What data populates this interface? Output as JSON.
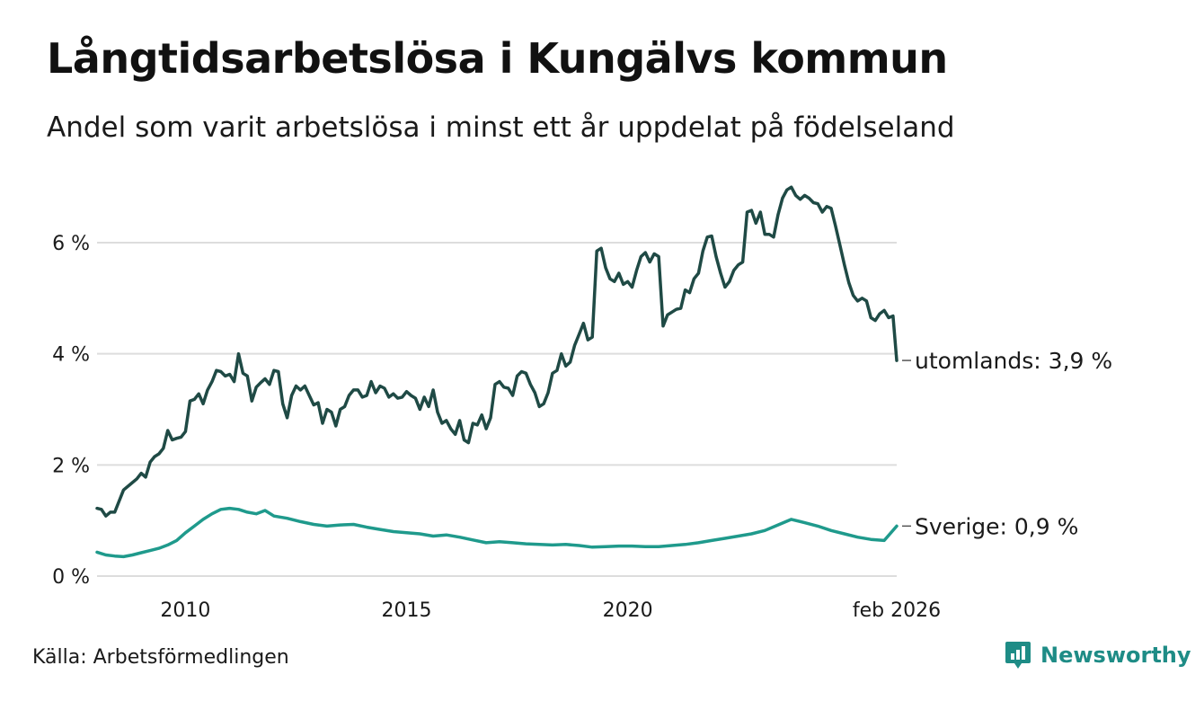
{
  "header": {
    "title": "Långtidsarbetslösa i Kungälvs kommun",
    "subtitle": "Andel som varit arbetslösa i minst ett år uppdelat på födelseland"
  },
  "footer": {
    "source": "Källa: Arbetsförmedlingen",
    "brand": "Newsworthy"
  },
  "colors": {
    "foreign": "#1f4a45",
    "sweden": "#1f9a8c",
    "grid": "#dddddd",
    "brand": "#1e8c86"
  },
  "chart_data": {
    "type": "line",
    "title": "Långtidsarbetslösa i Kungälvs kommun",
    "subtitle": "Andel som varit arbetslösa i minst ett år uppdelat på födelseland",
    "xlabel": "",
    "ylabel": "",
    "ylim": [
      0,
      7
    ],
    "xlim": [
      2008.0,
      2026.083
    ],
    "grid": true,
    "y_ticks": [
      {
        "value": 0,
        "label": "0 %"
      },
      {
        "value": 2,
        "label": "2 %"
      },
      {
        "value": 4,
        "label": "4 %"
      },
      {
        "value": 6,
        "label": "6 %"
      }
    ],
    "x_ticks": [
      {
        "value": 2010,
        "label": "2010"
      },
      {
        "value": 2015,
        "label": "2015"
      },
      {
        "value": 2020,
        "label": "2020"
      },
      {
        "value": 2026.083,
        "label": "feb 2026"
      }
    ],
    "series": [
      {
        "name": "utomlands",
        "end_label": "utomlands: 3,9 %",
        "color": "#1f4a45",
        "points": [
          [
            2008.0,
            1.22
          ],
          [
            2008.1,
            1.2
          ],
          [
            2008.2,
            1.08
          ],
          [
            2008.3,
            1.15
          ],
          [
            2008.4,
            1.15
          ],
          [
            2008.5,
            1.35
          ],
          [
            2008.6,
            1.55
          ],
          [
            2008.75,
            1.65
          ],
          [
            2008.9,
            1.75
          ],
          [
            2009.0,
            1.85
          ],
          [
            2009.1,
            1.78
          ],
          [
            2009.2,
            2.05
          ],
          [
            2009.3,
            2.15
          ],
          [
            2009.4,
            2.2
          ],
          [
            2009.5,
            2.3
          ],
          [
            2009.6,
            2.62
          ],
          [
            2009.7,
            2.45
          ],
          [
            2009.8,
            2.48
          ],
          [
            2009.9,
            2.5
          ],
          [
            2010.0,
            2.6
          ],
          [
            2010.1,
            3.15
          ],
          [
            2010.2,
            3.18
          ],
          [
            2010.3,
            3.28
          ],
          [
            2010.4,
            3.1
          ],
          [
            2010.5,
            3.35
          ],
          [
            2010.6,
            3.5
          ],
          [
            2010.7,
            3.7
          ],
          [
            2010.8,
            3.68
          ],
          [
            2010.9,
            3.6
          ],
          [
            2011.0,
            3.63
          ],
          [
            2011.1,
            3.5
          ],
          [
            2011.2,
            4.0
          ],
          [
            2011.3,
            3.65
          ],
          [
            2011.4,
            3.6
          ],
          [
            2011.5,
            3.15
          ],
          [
            2011.6,
            3.4
          ],
          [
            2011.7,
            3.48
          ],
          [
            2011.8,
            3.55
          ],
          [
            2011.9,
            3.45
          ],
          [
            2012.0,
            3.7
          ],
          [
            2012.1,
            3.68
          ],
          [
            2012.2,
            3.1
          ],
          [
            2012.3,
            2.85
          ],
          [
            2012.4,
            3.25
          ],
          [
            2012.5,
            3.42
          ],
          [
            2012.6,
            3.35
          ],
          [
            2012.7,
            3.42
          ],
          [
            2012.8,
            3.25
          ],
          [
            2012.9,
            3.08
          ],
          [
            2013.0,
            3.12
          ],
          [
            2013.1,
            2.75
          ],
          [
            2013.2,
            3.0
          ],
          [
            2013.3,
            2.95
          ],
          [
            2013.4,
            2.7
          ],
          [
            2013.5,
            3.0
          ],
          [
            2013.6,
            3.05
          ],
          [
            2013.7,
            3.25
          ],
          [
            2013.8,
            3.35
          ],
          [
            2013.9,
            3.35
          ],
          [
            2014.0,
            3.22
          ],
          [
            2014.1,
            3.25
          ],
          [
            2014.2,
            3.5
          ],
          [
            2014.3,
            3.3
          ],
          [
            2014.4,
            3.42
          ],
          [
            2014.5,
            3.38
          ],
          [
            2014.6,
            3.22
          ],
          [
            2014.7,
            3.28
          ],
          [
            2014.8,
            3.2
          ],
          [
            2014.9,
            3.22
          ],
          [
            2015.0,
            3.32
          ],
          [
            2015.1,
            3.25
          ],
          [
            2015.2,
            3.2
          ],
          [
            2015.3,
            3.0
          ],
          [
            2015.4,
            3.22
          ],
          [
            2015.5,
            3.05
          ],
          [
            2015.6,
            3.35
          ],
          [
            2015.7,
            2.95
          ],
          [
            2015.8,
            2.75
          ],
          [
            2015.9,
            2.8
          ],
          [
            2016.0,
            2.65
          ],
          [
            2016.1,
            2.55
          ],
          [
            2016.2,
            2.8
          ],
          [
            2016.3,
            2.45
          ],
          [
            2016.4,
            2.4
          ],
          [
            2016.5,
            2.75
          ],
          [
            2016.6,
            2.72
          ],
          [
            2016.7,
            2.9
          ],
          [
            2016.8,
            2.65
          ],
          [
            2016.9,
            2.85
          ],
          [
            2017.0,
            3.45
          ],
          [
            2017.1,
            3.5
          ],
          [
            2017.2,
            3.4
          ],
          [
            2017.3,
            3.38
          ],
          [
            2017.4,
            3.25
          ],
          [
            2017.5,
            3.6
          ],
          [
            2017.6,
            3.68
          ],
          [
            2017.7,
            3.65
          ],
          [
            2017.8,
            3.45
          ],
          [
            2017.9,
            3.3
          ],
          [
            2018.0,
            3.05
          ],
          [
            2018.1,
            3.1
          ],
          [
            2018.2,
            3.3
          ],
          [
            2018.3,
            3.65
          ],
          [
            2018.4,
            3.7
          ],
          [
            2018.5,
            4.0
          ],
          [
            2018.6,
            3.78
          ],
          [
            2018.7,
            3.85
          ],
          [
            2018.8,
            4.15
          ],
          [
            2018.9,
            4.35
          ],
          [
            2019.0,
            4.55
          ],
          [
            2019.1,
            4.25
          ],
          [
            2019.2,
            4.3
          ],
          [
            2019.3,
            5.85
          ],
          [
            2019.4,
            5.9
          ],
          [
            2019.5,
            5.55
          ],
          [
            2019.6,
            5.35
          ],
          [
            2019.7,
            5.3
          ],
          [
            2019.8,
            5.45
          ],
          [
            2019.9,
            5.25
          ],
          [
            2020.0,
            5.3
          ],
          [
            2020.1,
            5.2
          ],
          [
            2020.2,
            5.5
          ],
          [
            2020.3,
            5.75
          ],
          [
            2020.4,
            5.82
          ],
          [
            2020.5,
            5.65
          ],
          [
            2020.6,
            5.8
          ],
          [
            2020.7,
            5.75
          ],
          [
            2020.8,
            4.5
          ],
          [
            2020.9,
            4.7
          ],
          [
            2021.0,
            4.75
          ],
          [
            2021.1,
            4.8
          ],
          [
            2021.2,
            4.82
          ],
          [
            2021.3,
            5.15
          ],
          [
            2021.4,
            5.1
          ],
          [
            2021.5,
            5.35
          ],
          [
            2021.6,
            5.45
          ],
          [
            2021.7,
            5.85
          ],
          [
            2021.8,
            6.1
          ],
          [
            2021.9,
            6.12
          ],
          [
            2022.0,
            5.75
          ],
          [
            2022.1,
            5.45
          ],
          [
            2022.2,
            5.2
          ],
          [
            2022.3,
            5.3
          ],
          [
            2022.4,
            5.5
          ],
          [
            2022.5,
            5.6
          ],
          [
            2022.6,
            5.65
          ],
          [
            2022.7,
            6.55
          ],
          [
            2022.8,
            6.58
          ],
          [
            2022.9,
            6.35
          ],
          [
            2023.0,
            6.55
          ],
          [
            2023.1,
            6.15
          ],
          [
            2023.2,
            6.15
          ],
          [
            2023.3,
            6.1
          ],
          [
            2023.4,
            6.5
          ],
          [
            2023.5,
            6.8
          ],
          [
            2023.6,
            6.95
          ],
          [
            2023.7,
            7.0
          ],
          [
            2023.8,
            6.85
          ],
          [
            2023.9,
            6.78
          ],
          [
            2024.0,
            6.85
          ],
          [
            2024.1,
            6.8
          ],
          [
            2024.2,
            6.72
          ],
          [
            2024.3,
            6.7
          ],
          [
            2024.4,
            6.55
          ],
          [
            2024.5,
            6.65
          ],
          [
            2024.6,
            6.62
          ],
          [
            2024.7,
            6.3
          ],
          [
            2024.8,
            5.95
          ],
          [
            2024.9,
            5.6
          ],
          [
            2025.0,
            5.28
          ],
          [
            2025.1,
            5.05
          ],
          [
            2025.2,
            4.95
          ],
          [
            2025.3,
            5.0
          ],
          [
            2025.4,
            4.95
          ],
          [
            2025.5,
            4.65
          ],
          [
            2025.6,
            4.6
          ],
          [
            2025.7,
            4.72
          ],
          [
            2025.8,
            4.78
          ],
          [
            2025.9,
            4.65
          ],
          [
            2026.0,
            4.68
          ],
          [
            2026.083,
            3.88
          ]
        ]
      },
      {
        "name": "Sverige",
        "end_label": "Sverige: 0,9 %",
        "color": "#1f9a8c",
        "points": [
          [
            2008.0,
            0.43
          ],
          [
            2008.2,
            0.38
          ],
          [
            2008.4,
            0.36
          ],
          [
            2008.6,
            0.35
          ],
          [
            2008.8,
            0.38
          ],
          [
            2009.0,
            0.42
          ],
          [
            2009.2,
            0.46
          ],
          [
            2009.4,
            0.5
          ],
          [
            2009.6,
            0.56
          ],
          [
            2009.8,
            0.64
          ],
          [
            2010.0,
            0.78
          ],
          [
            2010.2,
            0.9
          ],
          [
            2010.4,
            1.02
          ],
          [
            2010.6,
            1.12
          ],
          [
            2010.8,
            1.2
          ],
          [
            2011.0,
            1.22
          ],
          [
            2011.2,
            1.2
          ],
          [
            2011.4,
            1.15
          ],
          [
            2011.6,
            1.12
          ],
          [
            2011.8,
            1.18
          ],
          [
            2012.0,
            1.08
          ],
          [
            2012.3,
            1.04
          ],
          [
            2012.6,
            0.98
          ],
          [
            2012.9,
            0.93
          ],
          [
            2013.2,
            0.9
          ],
          [
            2013.5,
            0.92
          ],
          [
            2013.8,
            0.93
          ],
          [
            2014.1,
            0.88
          ],
          [
            2014.4,
            0.84
          ],
          [
            2014.7,
            0.8
          ],
          [
            2015.0,
            0.78
          ],
          [
            2015.3,
            0.76
          ],
          [
            2015.6,
            0.72
          ],
          [
            2015.9,
            0.74
          ],
          [
            2016.2,
            0.7
          ],
          [
            2016.5,
            0.65
          ],
          [
            2016.8,
            0.6
          ],
          [
            2017.1,
            0.62
          ],
          [
            2017.4,
            0.6
          ],
          [
            2017.7,
            0.58
          ],
          [
            2018.0,
            0.57
          ],
          [
            2018.3,
            0.56
          ],
          [
            2018.6,
            0.57
          ],
          [
            2018.9,
            0.55
          ],
          [
            2019.2,
            0.52
          ],
          [
            2019.5,
            0.53
          ],
          [
            2019.8,
            0.54
          ],
          [
            2020.1,
            0.54
          ],
          [
            2020.4,
            0.53
          ],
          [
            2020.7,
            0.53
          ],
          [
            2021.0,
            0.55
          ],
          [
            2021.3,
            0.57
          ],
          [
            2021.6,
            0.6
          ],
          [
            2021.9,
            0.64
          ],
          [
            2022.2,
            0.68
          ],
          [
            2022.5,
            0.72
          ],
          [
            2022.8,
            0.76
          ],
          [
            2023.1,
            0.82
          ],
          [
            2023.4,
            0.92
          ],
          [
            2023.7,
            1.02
          ],
          [
            2024.0,
            0.96
          ],
          [
            2024.3,
            0.9
          ],
          [
            2024.6,
            0.82
          ],
          [
            2024.9,
            0.76
          ],
          [
            2025.2,
            0.7
          ],
          [
            2025.5,
            0.66
          ],
          [
            2025.8,
            0.64
          ],
          [
            2026.083,
            0.9
          ]
        ]
      }
    ]
  }
}
